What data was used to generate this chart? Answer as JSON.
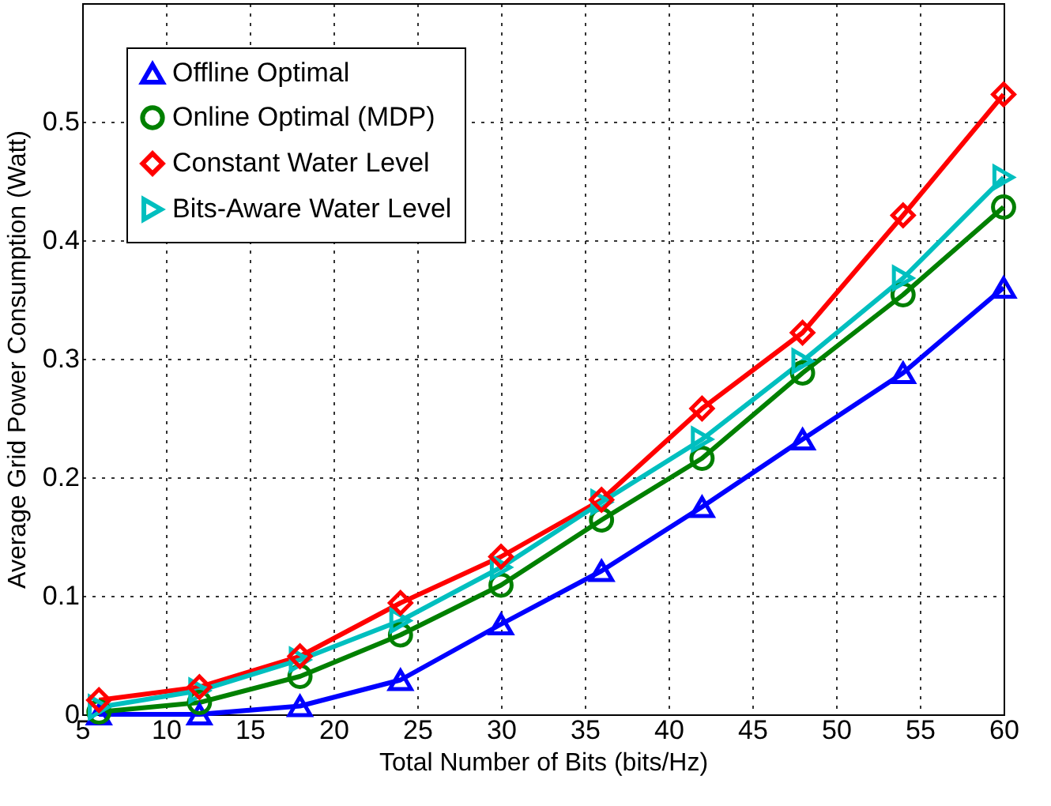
{
  "chart_data": {
    "type": "line",
    "xlabel": "Total Number of Bits (bits/Hz)",
    "ylabel": "Average Grid Power Consumption (Watt)",
    "x": [
      6,
      12,
      18,
      24,
      30,
      36,
      42,
      48,
      54,
      60
    ],
    "series": [
      {
        "name": "Offline Optimal",
        "color": "#0000ff",
        "marker": "triangle",
        "values": [
          0,
          0,
          0.007,
          0.029,
          0.076,
          0.121,
          0.175,
          0.232,
          0.288,
          0.36
        ]
      },
      {
        "name": "Online Optimal (MDP)",
        "color": "#008000",
        "marker": "circle",
        "values": [
          0.002,
          0.01,
          0.032,
          0.067,
          0.109,
          0.164,
          0.216,
          0.288,
          0.354,
          0.428
        ]
      },
      {
        "name": "Constant Water Level",
        "color": "#ff0000",
        "marker": "diamond",
        "values": [
          0.012,
          0.023,
          0.049,
          0.094,
          0.133,
          0.181,
          0.258,
          0.322,
          0.421,
          0.523
        ]
      },
      {
        "name": "Bits-Aware Water Level",
        "color": "#00bfbf",
        "marker": "triangle-right",
        "values": [
          0.006,
          0.02,
          0.046,
          0.079,
          0.124,
          0.179,
          0.232,
          0.298,
          0.368,
          0.453
        ]
      }
    ],
    "xlim": [
      5,
      60
    ],
    "xticks": [
      5,
      10,
      15,
      20,
      25,
      30,
      35,
      40,
      45,
      50,
      55,
      60
    ],
    "ylim": [
      0,
      0.6
    ],
    "yticks": [
      0,
      0.1,
      0.2,
      0.3,
      0.4,
      0.5
    ],
    "grid": true,
    "legend": "top left",
    "line_style": "solid"
  }
}
